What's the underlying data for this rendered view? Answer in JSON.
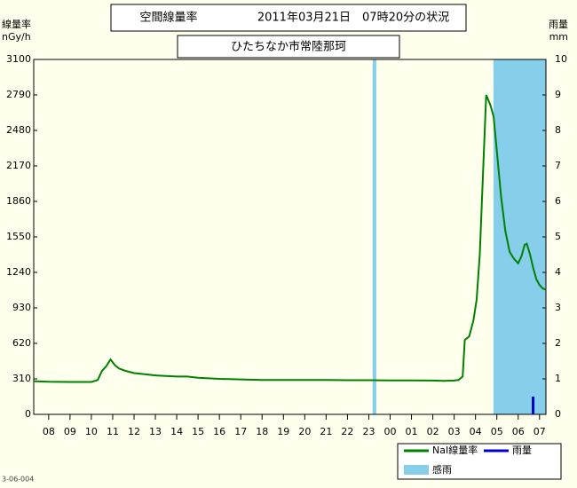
{
  "chart_data": {
    "type": "line",
    "title": "空間線量率",
    "title_time": "2011年03月21日　07時20分の状況",
    "subtitle": "ひたちなか市常陸那珂",
    "y_label": "線量率",
    "y_unit": "nGy/h",
    "y2_label": "雨量",
    "y2_unit": "mm",
    "footnote": "3-06-004",
    "xlim": [
      -0.7,
      23.3
    ],
    "xticks": [
      {
        "value": 0,
        "label": "08"
      },
      {
        "value": 1,
        "label": "09"
      },
      {
        "value": 2,
        "label": "10"
      },
      {
        "value": 3,
        "label": "11"
      },
      {
        "value": 4,
        "label": "12"
      },
      {
        "value": 5,
        "label": "13"
      },
      {
        "value": 6,
        "label": "14"
      },
      {
        "value": 7,
        "label": "15"
      },
      {
        "value": 8,
        "label": "16"
      },
      {
        "value": 9,
        "label": "17"
      },
      {
        "value": 10,
        "label": "18"
      },
      {
        "value": 11,
        "label": "19"
      },
      {
        "value": 12,
        "label": "20"
      },
      {
        "value": 13,
        "label": "21"
      },
      {
        "value": 14,
        "label": "22"
      },
      {
        "value": 15,
        "label": "23"
      },
      {
        "value": 16,
        "label": "00"
      },
      {
        "value": 17,
        "label": "01"
      },
      {
        "value": 18,
        "label": "02"
      },
      {
        "value": 19,
        "label": "03"
      },
      {
        "value": 20,
        "label": "04"
      },
      {
        "value": 21,
        "label": "05"
      },
      {
        "value": 22,
        "label": "06"
      },
      {
        "value": 23,
        "label": "07"
      }
    ],
    "ylim": [
      0,
      3100
    ],
    "yticks": [
      0,
      310,
      620,
      930,
      1240,
      1550,
      1860,
      2170,
      2480,
      2790,
      3100
    ],
    "y2lim": [
      0,
      10
    ],
    "y2ticks": [
      0,
      1,
      2,
      3,
      4,
      5,
      6,
      7,
      8,
      9,
      10
    ],
    "series": [
      {
        "name": "NaI線量率",
        "color": "#008000",
        "x": [
          -0.7,
          0,
          1,
          2,
          2.3,
          2.5,
          2.7,
          2.9,
          3.1,
          3.3,
          3.6,
          4,
          4.5,
          5,
          5.5,
          6,
          6.5,
          7,
          8,
          9,
          10,
          11,
          12,
          13,
          14,
          15,
          16,
          17,
          18,
          18.5,
          19,
          19.2,
          19.4,
          19.5,
          19.7,
          19.9,
          20.05,
          20.2,
          20.35,
          20.5,
          20.7,
          20.85,
          21.0,
          21.2,
          21.4,
          21.6,
          21.8,
          22.0,
          22.15,
          22.3,
          22.4,
          22.55,
          22.7,
          22.85,
          23.0,
          23.15,
          23.3
        ],
        "values": [
          290,
          285,
          283,
          283,
          300,
          380,
          420,
          480,
          430,
          400,
          380,
          360,
          350,
          340,
          335,
          330,
          330,
          320,
          310,
          305,
          300,
          300,
          300,
          300,
          298,
          298,
          297,
          297,
          295,
          292,
          295,
          300,
          330,
          650,
          680,
          820,
          1000,
          1400,
          2100,
          2790,
          2700,
          2600,
          2300,
          1900,
          1600,
          1420,
          1360,
          1320,
          1380,
          1480,
          1490,
          1400,
          1280,
          1180,
          1130,
          1100,
          1090
        ]
      },
      {
        "name": "雨量",
        "color": "#0000cc",
        "axis": "y2",
        "x": [
          22.7
        ],
        "values": [
          0.5
        ]
      }
    ],
    "shaded": {
      "name": "感雨",
      "color": "#87ceeb",
      "spans": [
        [
          15.18,
          15.35
        ],
        [
          20.84,
          23.3
        ]
      ]
    }
  }
}
